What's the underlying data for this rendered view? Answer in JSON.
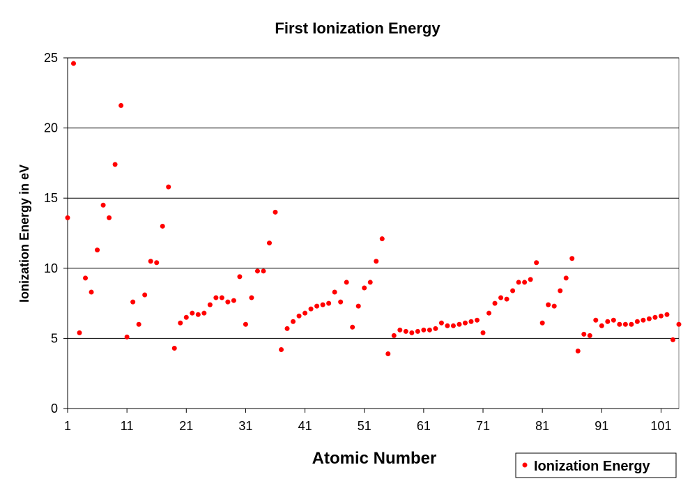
{
  "chart_data": {
    "type": "scatter",
    "title": "First Ionization Energy",
    "xlabel": "Atomic Number",
    "ylabel": "Ionization Energy in eV",
    "xlim": [
      1,
      104
    ],
    "ylim": [
      0,
      25
    ],
    "xticks": [
      1,
      11,
      21,
      31,
      41,
      51,
      61,
      71,
      81,
      91,
      101
    ],
    "yticks": [
      0,
      5,
      10,
      15,
      20,
      25
    ],
    "grid": "horizontal",
    "legend": "bottom-right",
    "marker_color": "#ff0000",
    "series": [
      {
        "name": "Ionization Energy",
        "x": [
          1,
          2,
          3,
          4,
          5,
          6,
          7,
          8,
          9,
          10,
          11,
          12,
          13,
          14,
          15,
          16,
          17,
          18,
          19,
          20,
          21,
          22,
          23,
          24,
          25,
          26,
          27,
          28,
          29,
          30,
          31,
          32,
          33,
          34,
          35,
          36,
          37,
          38,
          39,
          40,
          41,
          42,
          43,
          44,
          45,
          46,
          47,
          48,
          49,
          50,
          51,
          52,
          53,
          54,
          55,
          56,
          57,
          58,
          59,
          60,
          61,
          62,
          63,
          64,
          65,
          66,
          67,
          68,
          69,
          70,
          71,
          72,
          73,
          74,
          75,
          76,
          77,
          78,
          79,
          80,
          81,
          82,
          83,
          84,
          85,
          86,
          87,
          88,
          89,
          90,
          91,
          92,
          93,
          94,
          95,
          96,
          97,
          98,
          99,
          100,
          101,
          102,
          103,
          104
        ],
        "y": [
          13.6,
          24.6,
          5.4,
          9.3,
          8.3,
          11.3,
          14.5,
          13.6,
          17.4,
          21.6,
          5.1,
          7.6,
          6.0,
          8.1,
          10.5,
          10.4,
          13.0,
          15.8,
          4.3,
          6.1,
          6.5,
          6.8,
          6.7,
          6.8,
          7.4,
          7.9,
          7.9,
          7.6,
          7.7,
          9.4,
          6.0,
          7.9,
          9.8,
          9.8,
          11.8,
          14.0,
          4.2,
          5.7,
          6.2,
          6.6,
          6.8,
          7.1,
          7.3,
          7.4,
          7.5,
          8.3,
          7.6,
          9.0,
          5.8,
          7.3,
          8.6,
          9.0,
          10.5,
          12.1,
          3.9,
          5.2,
          5.6,
          5.5,
          5.4,
          5.5,
          5.6,
          5.6,
          5.7,
          6.1,
          5.9,
          5.9,
          6.0,
          6.1,
          6.2,
          6.3,
          5.4,
          6.8,
          7.5,
          7.9,
          7.8,
          8.4,
          9.0,
          9.0,
          9.2,
          10.4,
          6.1,
          7.4,
          7.3,
          8.4,
          9.3,
          10.7,
          4.1,
          5.3,
          5.2,
          6.3,
          5.9,
          6.2,
          6.3,
          6.0,
          6.0,
          6.0,
          6.2,
          6.3,
          6.4,
          6.5,
          6.6,
          6.7,
          4.9,
          6.0
        ]
      }
    ]
  }
}
